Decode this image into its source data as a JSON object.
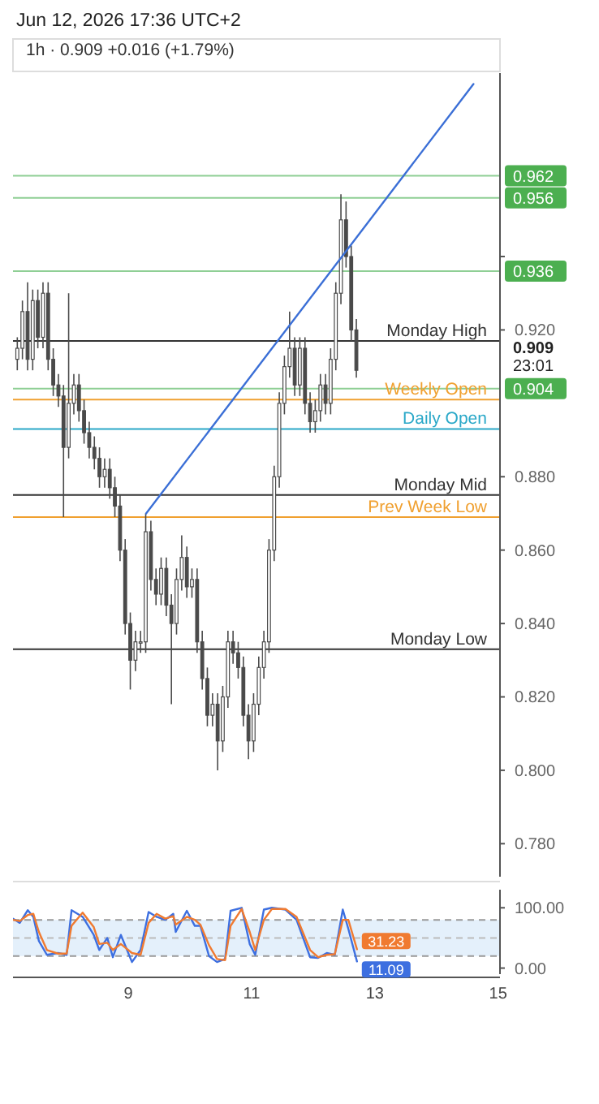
{
  "chart_data": [
    {
      "type": "candlestick",
      "title": "Jun 12, 2026 17:36 UTC+2",
      "subtitle": "1h · 0.909 +0.016 (+1.79%)",
      "color": "#4a4a4a",
      "x": [
        7.2,
        7.283,
        7.367,
        7.45,
        7.533,
        7.617,
        7.7,
        7.783,
        7.867,
        7.95,
        8.033,
        8.117,
        8.2,
        8.283,
        8.367,
        8.45,
        8.533,
        8.617,
        8.7,
        8.783,
        8.867,
        8.95,
        9.033,
        9.117,
        9.2,
        9.283,
        9.367,
        9.45,
        9.533,
        9.617,
        9.7,
        9.783,
        9.867,
        9.95,
        10.033,
        10.117,
        10.2,
        10.283,
        10.367,
        10.45,
        10.533,
        10.617,
        10.7,
        10.783,
        10.867,
        10.95,
        11.033,
        11.117,
        11.2,
        11.283,
        11.367,
        11.45,
        11.533,
        11.617,
        11.7,
        11.783,
        11.867,
        11.95,
        12.033,
        12.117,
        12.2,
        12.283,
        12.367,
        12.45,
        12.533,
        12.617,
        12.7
      ],
      "ohlc": [
        [
          0.912,
          0.918,
          0.909,
          0.915
        ],
        [
          0.915,
          0.928,
          0.912,
          0.925
        ],
        [
          0.925,
          0.933,
          0.909,
          0.912
        ],
        [
          0.912,
          0.931,
          0.909,
          0.928
        ],
        [
          0.928,
          0.931,
          0.915,
          0.918
        ],
        [
          0.918,
          0.933,
          0.915,
          0.93
        ],
        [
          0.93,
          0.933,
          0.909,
          0.912
        ],
        [
          0.912,
          0.915,
          0.902,
          0.905
        ],
        [
          0.905,
          0.908,
          0.899,
          0.902
        ],
        [
          0.902,
          0.905,
          0.869,
          0.888
        ],
        [
          0.888,
          0.93,
          0.885,
          0.9
        ],
        [
          0.9,
          0.908,
          0.897,
          0.905
        ],
        [
          0.905,
          0.908,
          0.895,
          0.898
        ],
        [
          0.898,
          0.901,
          0.889,
          0.892
        ],
        [
          0.892,
          0.895,
          0.885,
          0.888
        ],
        [
          0.888,
          0.891,
          0.882,
          0.885
        ],
        [
          0.885,
          0.888,
          0.877,
          0.88
        ],
        [
          0.88,
          0.885,
          0.877,
          0.882
        ],
        [
          0.882,
          0.885,
          0.874,
          0.877
        ],
        [
          0.877,
          0.88,
          0.869,
          0.872
        ],
        [
          0.872,
          0.875,
          0.857,
          0.86
        ],
        [
          0.86,
          0.863,
          0.837,
          0.84
        ],
        [
          0.84,
          0.843,
          0.822,
          0.83
        ],
        [
          0.83,
          0.838,
          0.827,
          0.835
        ],
        [
          0.835,
          0.838,
          0.832,
          0.835
        ],
        [
          0.835,
          0.87,
          0.832,
          0.865
        ],
        [
          0.865,
          0.868,
          0.849,
          0.852
        ],
        [
          0.852,
          0.855,
          0.845,
          0.848
        ],
        [
          0.848,
          0.858,
          0.845,
          0.855
        ],
        [
          0.855,
          0.858,
          0.842,
          0.845
        ],
        [
          0.845,
          0.848,
          0.818,
          0.84
        ],
        [
          0.84,
          0.855,
          0.837,
          0.852
        ],
        [
          0.852,
          0.864,
          0.849,
          0.858
        ],
        [
          0.858,
          0.861,
          0.847,
          0.85
        ],
        [
          0.85,
          0.855,
          0.847,
          0.852
        ],
        [
          0.852,
          0.855,
          0.832,
          0.835
        ],
        [
          0.835,
          0.838,
          0.822,
          0.825
        ],
        [
          0.825,
          0.828,
          0.812,
          0.815
        ],
        [
          0.815,
          0.821,
          0.812,
          0.818
        ],
        [
          0.818,
          0.821,
          0.8,
          0.808
        ],
        [
          0.808,
          0.823,
          0.805,
          0.82
        ],
        [
          0.82,
          0.838,
          0.817,
          0.835
        ],
        [
          0.835,
          0.838,
          0.829,
          0.832
        ],
        [
          0.832,
          0.835,
          0.825,
          0.828
        ],
        [
          0.828,
          0.831,
          0.812,
          0.815
        ],
        [
          0.815,
          0.818,
          0.803,
          0.808
        ],
        [
          0.808,
          0.821,
          0.805,
          0.818
        ],
        [
          0.818,
          0.831,
          0.815,
          0.828
        ],
        [
          0.828,
          0.838,
          0.825,
          0.835
        ],
        [
          0.835,
          0.863,
          0.832,
          0.86
        ],
        [
          0.86,
          0.883,
          0.857,
          0.88
        ],
        [
          0.88,
          0.903,
          0.877,
          0.9
        ],
        [
          0.9,
          0.913,
          0.897,
          0.91
        ],
        [
          0.91,
          0.925,
          0.907,
          0.915
        ],
        [
          0.915,
          0.918,
          0.902,
          0.905
        ],
        [
          0.905,
          0.918,
          0.902,
          0.915
        ],
        [
          0.915,
          0.918,
          0.897,
          0.9
        ],
        [
          0.9,
          0.903,
          0.892,
          0.895
        ],
        [
          0.895,
          0.901,
          0.892,
          0.898
        ],
        [
          0.898,
          0.908,
          0.895,
          0.905
        ],
        [
          0.905,
          0.908,
          0.897,
          0.9
        ],
        [
          0.9,
          0.915,
          0.897,
          0.912
        ],
        [
          0.912,
          0.933,
          0.909,
          0.93
        ],
        [
          0.93,
          0.957,
          0.927,
          0.95
        ],
        [
          0.95,
          0.955,
          0.937,
          0.94
        ],
        [
          0.94,
          0.943,
          0.917,
          0.92
        ],
        [
          0.92,
          0.923,
          0.907,
          0.909
        ]
      ],
      "series": [
        {
          "type": "line",
          "color": "#3b6fd6",
          "x": [
            9.29,
            14.6
          ],
          "values": [
            0.87,
            0.987
          ]
        }
      ],
      "xlim": [
        7.13,
        15.03
      ],
      "ylim": [
        0.771,
        0.99
      ],
      "yticks": [
        {
          "value": 0.78,
          "label": "0.780"
        },
        {
          "value": 0.8,
          "label": "0.800"
        },
        {
          "value": 0.82,
          "label": "0.820"
        },
        {
          "value": 0.84,
          "label": "0.840"
        },
        {
          "value": 0.86,
          "label": "0.860"
        },
        {
          "value": 0.88,
          "label": "0.880"
        },
        {
          "value": 0.92,
          "label": "0.920"
        },
        {
          "value": 0.94,
          "label": null
        }
      ],
      "tick_labels": "y",
      "grid": false,
      "ref_lines": [
        {
          "axis": "y",
          "value": 0.962,
          "color": "#8fcf95"
        },
        {
          "axis": "y",
          "value": 0.956,
          "color": "#8fcf95"
        },
        {
          "axis": "y",
          "value": 0.936,
          "color": "#8fcf95"
        },
        {
          "axis": "y",
          "value": 0.904,
          "color": "#8fcf95"
        },
        {
          "axis": "y",
          "value": 0.917,
          "label": "Monday High",
          "color": "#333333"
        },
        {
          "axis": "y",
          "value": 0.901,
          "label": "Weekly Open",
          "color": "#f0a030"
        },
        {
          "axis": "y",
          "value": 0.893,
          "label": "Daily Open",
          "color": "#2aa8c8"
        },
        {
          "axis": "y",
          "value": 0.875,
          "label": "Monday Mid",
          "color": "#333333"
        },
        {
          "axis": "y",
          "value": 0.869,
          "label": "Prev Week Low",
          "color": "#f0a030"
        },
        {
          "axis": "y",
          "value": 0.833,
          "label": "Monday Low",
          "color": "#333333"
        }
      ],
      "annotations": [
        "0.962",
        "0.956",
        "0.936",
        "0.904",
        "0.909",
        "23:01"
      ]
    },
    {
      "type": "line",
      "x": [
        7.13,
        7.24,
        7.37,
        7.46,
        7.55,
        7.68,
        7.86,
        8.0,
        8.08,
        8.26,
        8.44,
        8.53,
        8.66,
        8.75,
        8.88,
        9.06,
        9.2,
        9.33,
        9.46,
        9.6,
        9.73,
        9.77,
        9.95,
        10.08,
        10.17,
        10.31,
        10.44,
        10.57,
        10.66,
        10.84,
        10.97,
        11.06,
        11.2,
        11.33,
        11.55,
        11.73,
        11.95,
        12.08,
        12.22,
        12.35,
        12.48,
        12.57,
        12.71
      ],
      "series": [
        {
          "color": "#3d6fe0",
          "values": [
            82,
            75,
            96,
            85,
            45,
            22,
            25,
            22,
            96,
            85,
            55,
            30,
            50,
            18,
            55,
            10,
            30,
            93,
            85,
            80,
            90,
            60,
            95,
            70,
            70,
            20,
            10,
            15,
            95,
            100,
            40,
            22,
            97,
            100,
            97,
            80,
            18,
            17,
            25,
            22,
            97,
            65,
            11.09
          ],
          "value_labels": [
            null,
            null,
            null,
            null,
            null,
            null,
            null,
            null,
            null,
            null,
            null,
            null,
            null,
            null,
            null,
            null,
            null,
            null,
            null,
            null,
            null,
            null,
            null,
            null,
            null,
            null,
            null,
            null,
            null,
            null,
            null,
            null,
            null,
            null,
            null,
            null,
            null,
            null,
            null,
            null,
            null,
            null,
            "11.09"
          ]
        },
        {
          "color": "#f07a30",
          "values": [
            80,
            78,
            88,
            90,
            60,
            30,
            24,
            24,
            70,
            92,
            68,
            40,
            42,
            30,
            40,
            25,
            22,
            75,
            90,
            82,
            86,
            72,
            85,
            80,
            72,
            38,
            15,
            13,
            70,
            98,
            60,
            30,
            80,
            98,
            98,
            85,
            30,
            18,
            22,
            23,
            80,
            80,
            31.23
          ],
          "value_labels": [
            null,
            null,
            null,
            null,
            null,
            null,
            null,
            null,
            null,
            null,
            null,
            null,
            null,
            null,
            null,
            null,
            null,
            null,
            null,
            null,
            null,
            null,
            null,
            null,
            null,
            null,
            null,
            null,
            null,
            null,
            null,
            null,
            null,
            null,
            null,
            null,
            null,
            null,
            null,
            null,
            null,
            null,
            "31.23"
          ]
        }
      ],
      "xlim": [
        7.13,
        15.03
      ],
      "ylim": [
        -10,
        130
      ],
      "xticks": [
        9,
        11,
        13,
        15
      ],
      "yticks": [
        {
          "value": 100,
          "label": "100.00"
        },
        {
          "value": 0,
          "label": "0.00"
        }
      ],
      "marker": "none",
      "line_style": "solid",
      "grid": false,
      "bands": [
        {
          "axis": "y",
          "from": 20,
          "to": 80,
          "color": "#e4f0fb"
        }
      ],
      "ref_lines": [
        {
          "axis": "y",
          "value": 80,
          "color": "#999999",
          "line_style": "dashed"
        },
        {
          "axis": "y",
          "value": 50,
          "color": "#bbbbbb",
          "line_style": "dashed"
        },
        {
          "axis": "y",
          "value": 20,
          "color": "#999999",
          "line_style": "dashed"
        }
      ]
    }
  ]
}
